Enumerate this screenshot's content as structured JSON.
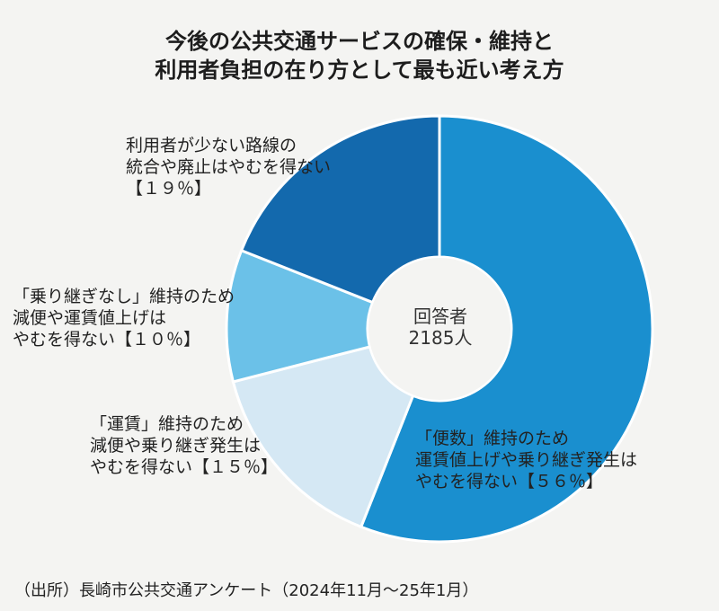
{
  "chart_data": {
    "type": "pie",
    "donut": true,
    "title": [
      "今後の公共交通サービスの確保・維持と",
      "利用者負担の在り方として最も近い考え方"
    ],
    "center_label": [
      "回答者",
      "2185人"
    ],
    "slices": [
      {
        "value": 56,
        "color": "#1a8fcf",
        "label": [
          "「便数」維持のため",
          "運賃値上げや乗り継ぎ発生は",
          "やむを得ない【５６％】"
        ]
      },
      {
        "value": 15,
        "color": "#d5e8f4",
        "label": [
          "「運賃」維持のため",
          "減便や乗り継ぎ発生は",
          "やむを得ない【１５％】"
        ]
      },
      {
        "value": 10,
        "color": "#6bc1e8",
        "label": [
          "「乗り継ぎなし」維持のため",
          "減便や運賃値上げは",
          "やむを得ない【１０％】"
        ]
      },
      {
        "value": 19,
        "color": "#1369ad",
        "label": [
          "利用者が少ない路線の",
          "統合や廃止はやむを得ない",
          "【１９％】"
        ]
      }
    ],
    "source": "（出所）長崎市公共交通アンケート（2024年11月～25年1月）"
  }
}
